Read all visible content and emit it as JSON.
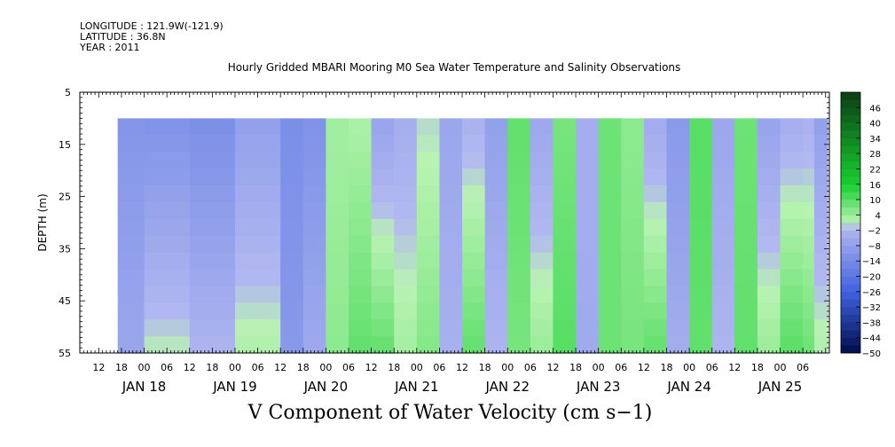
{
  "metadata": {
    "longitude": "LONGITUDE : 121.9W(-121.9)",
    "latitude": "LATITUDE : 36.8N",
    "year": "YEAR : 2011"
  },
  "chart_data": {
    "type": "heatmap",
    "title": "Hourly Gridded MBARI Mooring M0 Sea Water Temperature and Salinity Observations",
    "xlabel": "V Component of Water Velocity (cm s−1)",
    "ylabel": "DEPTH (m)",
    "ylim": [
      55,
      5
    ],
    "y_ticks": [
      5,
      15,
      25,
      35,
      45,
      55
    ],
    "data_depth_range": [
      10,
      55
    ],
    "x_range_hours": [
      "2011-01-17 07:00",
      "2011-01-25 13:00"
    ],
    "data_start": "2011-01-17 17:00",
    "hour_tick_labels": [
      "12",
      "18",
      "00",
      "06",
      "12",
      "18",
      "00",
      "06",
      "12",
      "18",
      "00",
      "06",
      "12",
      "18",
      "00",
      "06",
      "12",
      "18",
      "00",
      "06",
      "12",
      "18",
      "00",
      "06",
      "12",
      "18",
      "00",
      "06",
      "12",
      "18",
      "00",
      "06"
    ],
    "day_labels": [
      "JAN 18",
      "JAN 19",
      "JAN 20",
      "JAN 21",
      "JAN 22",
      "JAN 23",
      "JAN 24",
      "JAN 25"
    ],
    "colorbar": {
      "labels": [
        "46",
        "40",
        "34",
        "28",
        "22",
        "16",
        "10",
        "4",
        "−2",
        "−8",
        "−14",
        "−20",
        "−26",
        "−32",
        "−38",
        "−44",
        "−50"
      ],
      "min": -50,
      "max": 52,
      "step": 3,
      "colors": {
        "strong_positive": "#0a3d14",
        "positive": "#16cf30",
        "weak_positive": "#b9f3b3",
        "weak_negative": "#b2b8f0",
        "negative": "#3f62df",
        "strong_negative": "#000c4e"
      }
    },
    "v_by_time_column": [
      {
        "time": "2011-01-17 17:00",
        "top_10m": -11,
        "bottom_55m": -6
      },
      {
        "time": "2011-01-18 00:00",
        "top_10m": -12,
        "bottom_55m": 1
      },
      {
        "time": "2011-01-18 12:00",
        "top_10m": -13,
        "bottom_55m": -2
      },
      {
        "time": "2011-01-19 00:00",
        "top_10m": -8,
        "bottom_55m": 2
      },
      {
        "time": "2011-01-19 12:00",
        "top_10m": -13,
        "bottom_55m": -10
      },
      {
        "time": "2011-01-19 18:00",
        "top_10m": -12,
        "bottom_55m": -5
      },
      {
        "time": "2011-01-20 00:00",
        "top_10m": 3,
        "bottom_55m": 5
      },
      {
        "time": "2011-01-20 06:00",
        "top_10m": 2,
        "bottom_55m": 9
      },
      {
        "time": "2011-01-20 12:00",
        "top_10m": -7,
        "bottom_55m": 9
      },
      {
        "time": "2011-01-20 18:00",
        "top_10m": -4,
        "bottom_55m": 3
      },
      {
        "time": "2011-01-21 00:00",
        "top_10m": 0,
        "bottom_55m": 6
      },
      {
        "time": "2011-01-21 06:00",
        "top_10m": -6,
        "bottom_55m": -3
      },
      {
        "time": "2011-01-21 12:00",
        "top_10m": -3,
        "bottom_55m": 9
      },
      {
        "time": "2011-01-21 18:00",
        "top_10m": -8,
        "bottom_55m": -2
      },
      {
        "time": "2011-01-22 00:00",
        "top_10m": 9,
        "bottom_55m": 7
      },
      {
        "time": "2011-01-22 06:00",
        "top_10m": -6,
        "bottom_55m": 4
      },
      {
        "time": "2011-01-22 12:00",
        "top_10m": 7,
        "bottom_55m": 10
      },
      {
        "time": "2011-01-22 18:00",
        "top_10m": -4,
        "bottom_55m": -5
      },
      {
        "time": "2011-01-23 00:00",
        "top_10m": 8,
        "bottom_55m": 8
      },
      {
        "time": "2011-01-23 06:00",
        "top_10m": 5,
        "bottom_55m": 7
      },
      {
        "time": "2011-01-23 12:00",
        "top_10m": -5,
        "bottom_55m": 9
      },
      {
        "time": "2011-01-23 18:00",
        "top_10m": -10,
        "bottom_55m": -4
      },
      {
        "time": "2011-01-24 00:00",
        "top_10m": 10,
        "bottom_55m": 9
      },
      {
        "time": "2011-01-24 06:00",
        "top_10m": -6,
        "bottom_55m": -2
      },
      {
        "time": "2011-01-24 12:00",
        "top_10m": 8,
        "bottom_55m": 9
      },
      {
        "time": "2011-01-24 18:00",
        "top_10m": -7,
        "bottom_55m": 4
      },
      {
        "time": "2011-01-25 00:00",
        "top_10m": -4,
        "bottom_55m": 10
      },
      {
        "time": "2011-01-25 06:00",
        "top_10m": -3,
        "bottom_55m": 8
      },
      {
        "time": "2011-01-25 09:00",
        "top_10m": -8,
        "bottom_55m": 2
      }
    ]
  }
}
